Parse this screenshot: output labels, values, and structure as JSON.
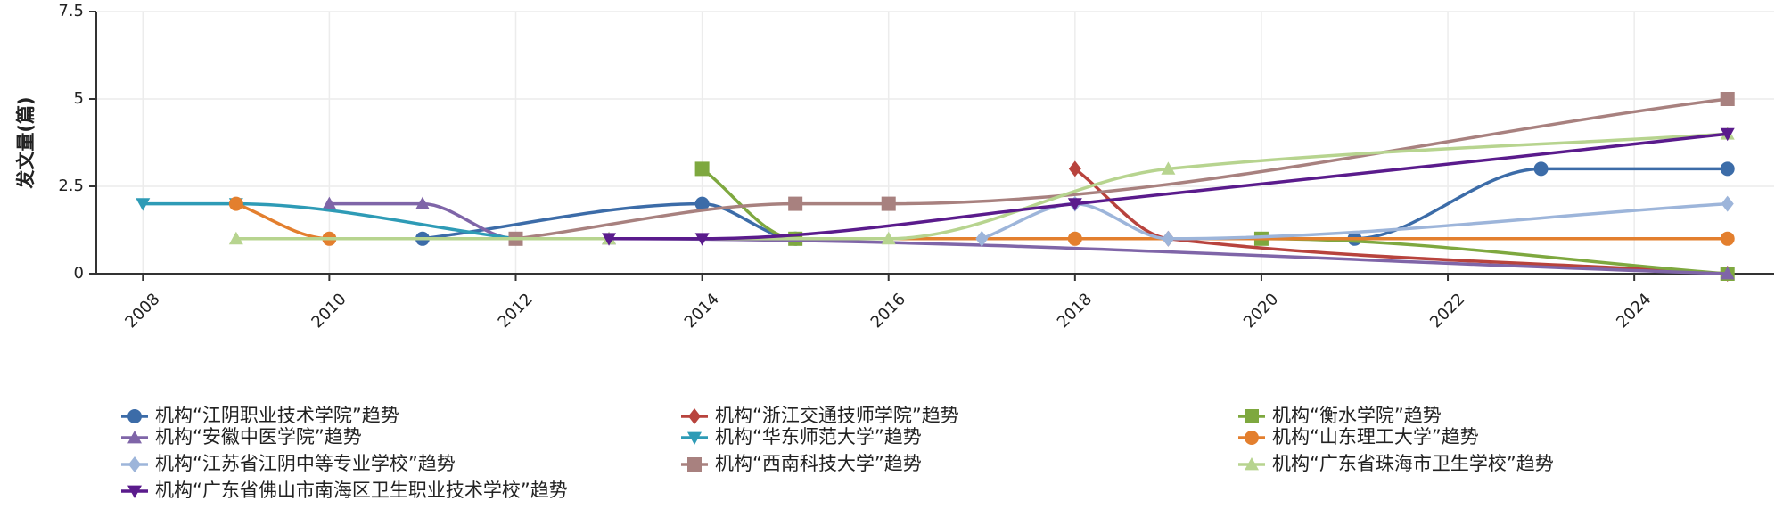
{
  "chart_data": {
    "type": "line",
    "y_label": "发文量(篇)",
    "xlim": [
      2007.5,
      2025.5
    ],
    "xticks": [
      2008,
      2010,
      2012,
      2014,
      2016,
      2018,
      2020,
      2022,
      2024
    ],
    "ylim": [
      0,
      7.5
    ],
    "yticks": [
      0,
      2.5,
      5,
      7.5
    ],
    "grid": true,
    "series": [
      {
        "name": "机构“江阴职业技术学院”趋势",
        "color": "#3c6ca8",
        "marker": "circle",
        "x": [
          2011,
          2014,
          2015,
          2021,
          2023,
          2025
        ],
        "values": [
          1,
          2,
          1,
          1,
          3,
          3
        ]
      },
      {
        "name": "机构“浙江交通技师学院”趋势",
        "color": "#b8433d",
        "marker": "diamond",
        "x": [
          2018,
          2019,
          2025
        ],
        "values": [
          3,
          1,
          0
        ]
      },
      {
        "name": "机构“衡水学院”趋势",
        "color": "#7ea83f",
        "marker": "square",
        "x": [
          2014,
          2015,
          2020,
          2025
        ],
        "values": [
          3,
          1,
          1,
          0
        ]
      },
      {
        "name": "机构“安徽中医学院”趋势",
        "color": "#7f65a8",
        "marker": "triangle",
        "x": [
          2010,
          2011,
          2012,
          2013,
          2025
        ],
        "values": [
          2,
          2,
          1,
          1,
          0
        ]
      },
      {
        "name": "机构“华东师范大学”趋势",
        "color": "#2e9bb6",
        "marker": "triangle-down",
        "x": [
          2008,
          2009,
          2012
        ],
        "values": [
          2,
          2,
          1
        ]
      },
      {
        "name": "机构“山东理工大学”趋势",
        "color": "#e37f2e",
        "marker": "circle",
        "x": [
          2009,
          2010,
          2018,
          2025
        ],
        "values": [
          2,
          1,
          1,
          1
        ]
      },
      {
        "name": "机构“江苏省江阴中等专业学校”趋势",
        "color": "#9db5da",
        "marker": "diamond",
        "x": [
          2017,
          2018,
          2019,
          2025
        ],
        "values": [
          1,
          2,
          1,
          2
        ]
      },
      {
        "name": "机构“西南科技大学”趋势",
        "color": "#a8817f",
        "marker": "square",
        "x": [
          2012,
          2015,
          2016,
          2025
        ],
        "values": [
          1,
          2,
          2,
          5
        ]
      },
      {
        "name": "机构“广东省珠海市卫生学校”趋势",
        "color": "#b7d48f",
        "marker": "triangle",
        "x": [
          2009,
          2013,
          2016,
          2019,
          2025
        ],
        "values": [
          1,
          1,
          1,
          3,
          4
        ]
      },
      {
        "name": "机构“广东省佛山市南海区卫生职业技术学校”趋势",
        "color": "#5a1b8c",
        "marker": "triangle-down",
        "x": [
          2013,
          2014,
          2018,
          2025
        ],
        "values": [
          1,
          1,
          2,
          4
        ]
      }
    ]
  }
}
